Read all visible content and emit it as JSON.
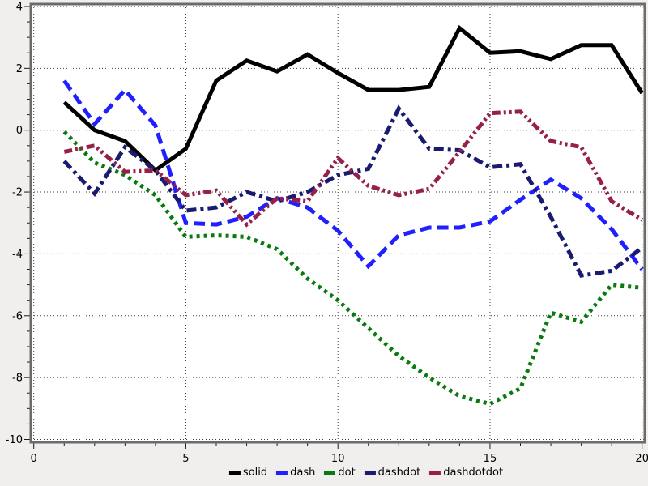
{
  "chart_data": {
    "type": "line",
    "title": "",
    "xlabel": "",
    "ylabel": "",
    "x_range": [
      0,
      20
    ],
    "y_range": [
      -10,
      4
    ],
    "x_major_ticks": [
      0,
      5,
      10,
      15,
      20
    ],
    "x_tick_labels": [
      "0",
      "5",
      "10",
      "15",
      "20"
    ],
    "x_minor_step": 1,
    "y_major_ticks": [
      4,
      2,
      0,
      -2,
      -4,
      -6,
      -8,
      -10
    ],
    "y_tick_labels": [
      "4",
      "2",
      "0",
      "-2",
      "-4",
      "-6",
      "-8",
      "-10"
    ],
    "y_minor_step": 0.5,
    "grid": true,
    "legend_position": "bottom-center",
    "x": [
      1,
      2,
      3,
      4,
      5,
      6,
      7,
      8,
      9,
      10,
      11,
      12,
      13,
      14,
      15,
      16,
      17,
      18,
      19,
      20
    ],
    "series": [
      {
        "name": "solid",
        "color": "#000000",
        "line_style": "solid",
        "values": [
          0.9,
          0.0,
          -0.35,
          -1.3,
          -0.6,
          1.6,
          2.25,
          1.9,
          2.45,
          1.85,
          1.3,
          1.3,
          1.4,
          3.3,
          2.5,
          2.55,
          2.3,
          2.75,
          2.75,
          1.2
        ]
      },
      {
        "name": "dash",
        "color": "#2020ff",
        "line_style": "dash",
        "values": [
          1.6,
          0.2,
          1.3,
          0.15,
          -3.0,
          -3.05,
          -2.8,
          -2.2,
          -2.5,
          -3.25,
          -4.4,
          -3.4,
          -3.15,
          -3.15,
          -2.95,
          -2.25,
          -1.6,
          -2.2,
          -3.2,
          -4.5
        ]
      },
      {
        "name": "dot",
        "color": "#0a7a0f",
        "line_style": "dot",
        "values": [
          -0.05,
          -1.05,
          -1.45,
          -2.1,
          -3.45,
          -3.4,
          -3.45,
          -3.85,
          -4.8,
          -5.5,
          -6.4,
          -7.3,
          -8.0,
          -8.6,
          -8.85,
          -8.35,
          -5.9,
          -6.2,
          -5.0,
          -5.1
        ]
      },
      {
        "name": "dashdot",
        "color": "#1a1a70",
        "line_style": "dashdot",
        "values": [
          -1.0,
          -2.05,
          -0.55,
          -1.3,
          -2.6,
          -2.5,
          -2.0,
          -2.3,
          -2.0,
          -1.45,
          -1.25,
          0.7,
          -0.6,
          -0.65,
          -1.2,
          -1.1,
          -2.8,
          -4.7,
          -4.55,
          -3.8
        ]
      },
      {
        "name": "dashdotdot",
        "color": "#96204a",
        "line_style": "dashdotdot",
        "values": [
          -0.7,
          -0.5,
          -1.35,
          -1.3,
          -2.1,
          -1.95,
          -3.05,
          -2.2,
          -2.3,
          -0.9,
          -1.8,
          -2.1,
          -1.9,
          -0.7,
          0.55,
          0.6,
          -0.35,
          -0.55,
          -2.3,
          -2.9
        ]
      }
    ],
    "legend": [
      "solid",
      "dash",
      "dot",
      "dashdot",
      "dashdotdot"
    ],
    "colors": {
      "page_background": "#f0efee",
      "plot_background": "#ffffff",
      "frame": "#6b6b6b",
      "grid": "#3a3a3a",
      "tick": "#1a1a1a",
      "tick_label": "#000000"
    }
  }
}
